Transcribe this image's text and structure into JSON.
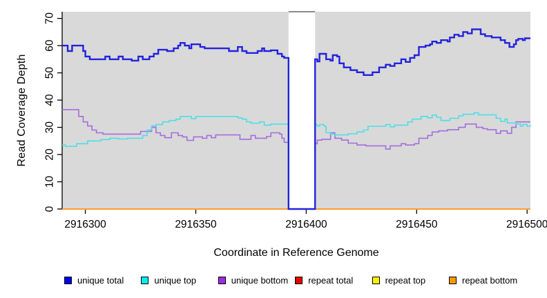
{
  "chart_data": {
    "type": "line",
    "step": true,
    "title": "",
    "xlabel": "Coordinate in Reference Genome",
    "ylabel": "Read Coverage Depth",
    "xlim": [
      2916289.5,
      2916501.5
    ],
    "ylim": [
      0,
      72.6
    ],
    "x_ticks": [
      "2916300",
      "2916350",
      "2916400",
      "2916450",
      "2916500"
    ],
    "x_tick_values": [
      2916300,
      2916350,
      2916400,
      2916450,
      2916500
    ],
    "y_ticks": [
      "0",
      "10",
      "20",
      "30",
      "40",
      "50",
      "60",
      "70"
    ],
    "y_tick_values": [
      0,
      10,
      20,
      30,
      40,
      50,
      60,
      70
    ],
    "plot_bg": "#d9d9d9",
    "axis_color": "#000000",
    "grid": "off",
    "legend_position": "bottom",
    "gap_region": {
      "x_start": 2916392,
      "x_end": 2916404,
      "fill": "#ffffff",
      "top_border": "#8a8a8a"
    },
    "series": [
      {
        "name": "repeat total",
        "color": "#e60000",
        "width": 1.5,
        "z": 1,
        "points": [
          [
            2916289.5,
            0
          ],
          [
            2916501.5,
            0
          ]
        ]
      },
      {
        "name": "repeat top",
        "color": "#fff200",
        "width": 1.5,
        "z": 2,
        "points": [
          [
            2916289.5,
            0
          ],
          [
            2916501.5,
            0
          ]
        ]
      },
      {
        "name": "repeat bottom",
        "color": "#ff9d2e",
        "width": 2,
        "z": 3,
        "points": [
          [
            2916289.5,
            0
          ],
          [
            2916501.5,
            0
          ]
        ]
      },
      {
        "name": "unique bottom",
        "color": "#a46ddb",
        "width": 1.6,
        "z": 4,
        "points": [
          [
            2916289.5,
            36.5
          ],
          [
            2916297,
            34
          ],
          [
            2916299,
            32
          ],
          [
            2916301,
            30.5
          ],
          [
            2916303,
            29
          ],
          [
            2916305,
            28
          ],
          [
            2916308,
            27.5
          ],
          [
            2916325,
            28.5
          ],
          [
            2916330,
            30
          ],
          [
            2916332,
            28
          ],
          [
            2916334,
            27
          ],
          [
            2916336,
            26.2
          ],
          [
            2916339,
            28
          ],
          [
            2916342,
            27
          ],
          [
            2916344,
            26.5
          ],
          [
            2916346,
            25.2
          ],
          [
            2916349,
            26.5
          ],
          [
            2916353,
            26
          ],
          [
            2916355,
            27
          ],
          [
            2916357,
            26.2
          ],
          [
            2916359,
            27.2
          ],
          [
            2916370,
            25.6
          ],
          [
            2916375,
            27
          ],
          [
            2916377,
            26
          ],
          [
            2916382,
            26.6
          ],
          [
            2916384,
            28
          ],
          [
            2916388,
            27.5
          ],
          [
            2916389,
            26
          ],
          [
            2916390,
            24.5
          ],
          [
            2916392,
            0
          ],
          [
            2916404,
            24
          ],
          [
            2916405,
            25.3
          ],
          [
            2916407,
            25.6
          ],
          [
            2916411,
            28
          ],
          [
            2916413,
            26
          ],
          [
            2916416,
            25.3
          ],
          [
            2916419,
            24.2
          ],
          [
            2916423,
            23.5
          ],
          [
            2916427,
            23.2
          ],
          [
            2916436,
            22
          ],
          [
            2916438,
            23.2
          ],
          [
            2916443,
            24
          ],
          [
            2916445,
            23.5
          ],
          [
            2916449,
            24
          ],
          [
            2916451,
            26
          ],
          [
            2916455,
            27
          ],
          [
            2916457,
            28.3
          ],
          [
            2916460,
            28.7
          ],
          [
            2916464,
            29.1
          ],
          [
            2916469,
            30
          ],
          [
            2916472,
            31.2
          ],
          [
            2916477,
            30
          ],
          [
            2916480,
            29.5
          ],
          [
            2916482,
            29.1
          ],
          [
            2916486,
            27.8
          ],
          [
            2916488,
            28.7
          ],
          [
            2916491,
            27.8
          ],
          [
            2916493,
            30
          ],
          [
            2916495,
            32
          ],
          [
            2916501.5,
            32
          ]
        ]
      },
      {
        "name": "unique top",
        "color": "#50dde6",
        "width": 1.6,
        "z": 5,
        "points": [
          [
            2916289.5,
            23.5
          ],
          [
            2916291,
            23
          ],
          [
            2916296,
            24
          ],
          [
            2916301,
            25
          ],
          [
            2916307,
            25.5
          ],
          [
            2916311,
            26
          ],
          [
            2916315,
            25.7
          ],
          [
            2916319,
            26
          ],
          [
            2916326,
            27
          ],
          [
            2916328,
            29
          ],
          [
            2916330,
            30.5
          ],
          [
            2916332,
            31
          ],
          [
            2916335,
            32
          ],
          [
            2916338,
            32.5
          ],
          [
            2916341,
            33
          ],
          [
            2916343,
            34
          ],
          [
            2916348,
            33.2
          ],
          [
            2916350,
            34
          ],
          [
            2916369,
            33.5
          ],
          [
            2916371,
            33
          ],
          [
            2916373,
            32
          ],
          [
            2916375,
            31.5
          ],
          [
            2916379,
            32
          ],
          [
            2916381,
            30.8
          ],
          [
            2916384,
            31.2
          ],
          [
            2916392,
            0
          ],
          [
            2916404,
            31
          ],
          [
            2916405,
            30.4
          ],
          [
            2916406,
            31
          ],
          [
            2916408,
            30.4
          ],
          [
            2916409,
            28
          ],
          [
            2916411,
            27.5
          ],
          [
            2916413,
            27.2
          ],
          [
            2916419,
            27.6
          ],
          [
            2916423,
            28.3
          ],
          [
            2916426,
            29
          ],
          [
            2916428,
            30.4
          ],
          [
            2916436,
            31
          ],
          [
            2916438,
            30.2
          ],
          [
            2916440,
            30.8
          ],
          [
            2916446,
            32
          ],
          [
            2916448,
            33
          ],
          [
            2916452,
            34
          ],
          [
            2916455,
            33.5
          ],
          [
            2916457,
            34.5
          ],
          [
            2916459,
            33.7
          ],
          [
            2916461,
            32.5
          ],
          [
            2916465,
            33.3
          ],
          [
            2916469,
            34.2
          ],
          [
            2916471,
            34.8
          ],
          [
            2916476,
            35.3
          ],
          [
            2916478,
            34.6
          ],
          [
            2916486,
            33.3
          ],
          [
            2916488,
            32.2
          ],
          [
            2916490,
            33
          ],
          [
            2916491,
            31.6
          ],
          [
            2916495,
            31.2
          ],
          [
            2916497,
            30.4
          ],
          [
            2916498,
            31
          ],
          [
            2916500,
            30.4
          ],
          [
            2916501.5,
            31
          ]
        ]
      },
      {
        "name": "unique total",
        "color": "#2222dd",
        "width": 2.4,
        "z": 6,
        "points": [
          [
            2916289.5,
            60
          ],
          [
            2916292,
            58
          ],
          [
            2916294,
            60
          ],
          [
            2916299,
            58
          ],
          [
            2916300,
            56
          ],
          [
            2916302,
            55
          ],
          [
            2916309,
            56
          ],
          [
            2916311,
            55
          ],
          [
            2916315,
            56
          ],
          [
            2916317,
            55
          ],
          [
            2916321,
            54.5
          ],
          [
            2916324,
            56
          ],
          [
            2916326,
            55
          ],
          [
            2916329,
            56
          ],
          [
            2916331,
            57
          ],
          [
            2916333,
            58.5
          ],
          [
            2916337,
            58
          ],
          [
            2916340,
            59
          ],
          [
            2916342,
            60
          ],
          [
            2916343,
            61
          ],
          [
            2916345,
            60
          ],
          [
            2916347,
            59
          ],
          [
            2916348,
            60.5
          ],
          [
            2916352,
            59.5
          ],
          [
            2916354,
            59
          ],
          [
            2916365,
            58
          ],
          [
            2916369,
            59.5
          ],
          [
            2916371,
            58
          ],
          [
            2916373,
            57.3
          ],
          [
            2916378,
            58
          ],
          [
            2916380,
            59
          ],
          [
            2916381,
            58
          ],
          [
            2916384,
            58.3
          ],
          [
            2916387,
            57
          ],
          [
            2916389,
            56
          ],
          [
            2916390,
            55.5
          ],
          [
            2916392,
            0
          ],
          [
            2916404,
            55
          ],
          [
            2916405,
            54.2
          ],
          [
            2916406,
            57
          ],
          [
            2916409,
            55
          ],
          [
            2916411,
            54.5
          ],
          [
            2916412,
            56.5
          ],
          [
            2916414,
            56
          ],
          [
            2916415,
            53.5
          ],
          [
            2916417,
            52
          ],
          [
            2916420,
            51
          ],
          [
            2916423,
            50.2
          ],
          [
            2916426,
            49.2
          ],
          [
            2916430,
            50.2
          ],
          [
            2916433,
            52
          ],
          [
            2916436,
            53
          ],
          [
            2916438,
            52.5
          ],
          [
            2916440,
            53.5
          ],
          [
            2916443,
            55
          ],
          [
            2916445,
            54
          ],
          [
            2916447,
            55.5
          ],
          [
            2916449,
            56.5
          ],
          [
            2916451,
            59.5
          ],
          [
            2916454,
            60
          ],
          [
            2916456,
            60.5
          ],
          [
            2916457,
            61.5
          ],
          [
            2916459,
            61
          ],
          [
            2916461,
            62
          ],
          [
            2916464,
            61.5
          ],
          [
            2916465,
            63
          ],
          [
            2916467,
            64
          ],
          [
            2916469,
            63.5
          ],
          [
            2916471,
            65
          ],
          [
            2916473,
            64.5
          ],
          [
            2916475,
            66
          ],
          [
            2916479,
            64.2
          ],
          [
            2916481,
            63.5
          ],
          [
            2916484,
            63
          ],
          [
            2916488,
            62
          ],
          [
            2916490,
            61
          ],
          [
            2916492,
            59.5
          ],
          [
            2916494,
            60.5
          ],
          [
            2916495,
            62
          ],
          [
            2916496,
            62.5
          ],
          [
            2916498,
            62
          ],
          [
            2916499,
            62.7
          ],
          [
            2916501.5,
            62.7
          ]
        ]
      }
    ],
    "legend_items": [
      {
        "label": "unique total",
        "color": "#0000f0"
      },
      {
        "label": "unique top",
        "color": "#00eeee"
      },
      {
        "label": "unique bottom",
        "color": "#9b2fe0"
      },
      {
        "label": "repeat total",
        "color": "#e60000"
      },
      {
        "label": "repeat top",
        "color": "#fff200"
      },
      {
        "label": "repeat bottom",
        "color": "#f59a00"
      }
    ]
  }
}
